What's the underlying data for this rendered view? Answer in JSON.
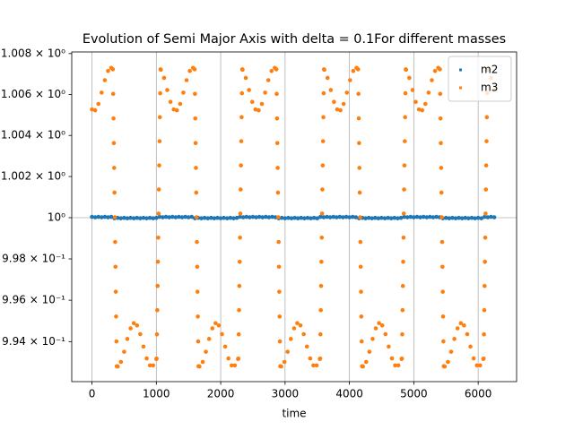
{
  "chart_data": {
    "type": "scatter",
    "title": "Evolution of Semi Major Axis with delta = 0.1For different masses",
    "x_label": "time",
    "xlim": [
      -314,
      6597
    ],
    "xticks": [
      0,
      1000,
      2000,
      3000,
      4000,
      5000,
      6000
    ],
    "xgrid": true,
    "yscale": "log",
    "ylim": [
      0.99207,
      1.00808
    ],
    "yticks": [
      {
        "value": 1.008,
        "label": "1.008 × 10⁰"
      },
      {
        "value": 1.006,
        "label": "1.006 × 10⁰"
      },
      {
        "value": 1.004,
        "label": "1.004 × 10⁰"
      },
      {
        "value": 1.002,
        "label": "1.002 × 10⁰"
      },
      {
        "value": 1,
        "label": "10⁰",
        "grid": true
      },
      {
        "value": 0.998,
        "label": "9.98 × 10⁻¹"
      },
      {
        "value": 0.996,
        "label": "9.96 × 10⁻¹"
      },
      {
        "value": 0.994,
        "label": "9.94 × 10⁻¹"
      }
    ],
    "legend": "upper right",
    "series": [
      {
        "name": "m2",
        "color": "#1f77b4",
        "x": [
          0,
          50,
          100,
          150,
          200,
          250,
          300,
          350,
          400,
          450,
          500,
          550,
          600,
          650,
          700,
          750,
          800,
          850,
          900,
          950,
          1000,
          1050,
          1100,
          1150,
          1200,
          1250,
          1300,
          1350,
          1400,
          1450,
          1500,
          1550,
          1600,
          1650,
          1700,
          1750,
          1800,
          1850,
          1900,
          1950,
          2000,
          2050,
          2100,
          2150,
          2200,
          2250,
          2300,
          2350,
          2400,
          2450,
          2500,
          2550,
          2600,
          2650,
          2700,
          2750,
          2800,
          2850,
          2900,
          2950,
          3000,
          3050,
          3100,
          3150,
          3200,
          3250,
          3300,
          3350,
          3400,
          3450,
          3500,
          3550,
          3600,
          3650,
          3700,
          3750,
          3800,
          3850,
          3900,
          3950,
          4000,
          4050,
          4100,
          4150,
          4200,
          4250,
          4300,
          4350,
          4400,
          4450,
          4500,
          4550,
          4600,
          4650,
          4700,
          4750,
          4800,
          4850,
          4900,
          4950,
          5000,
          5050,
          5100,
          5150,
          5200,
          5250,
          5300,
          5350,
          5400,
          5450,
          5500,
          5550,
          5600,
          5650,
          5700,
          5750,
          5800,
          5850,
          5900,
          5950,
          6000,
          6050,
          6100,
          6150,
          6200,
          6250
        ],
        "values": [
          1.00004,
          1.00002,
          1.00004,
          1.00002,
          1.00004,
          1.00002,
          1.00004,
          0.99997,
          0.99999,
          0.99997,
          0.99999,
          0.99997,
          0.99999,
          0.99997,
          0.99999,
          0.99997,
          0.99999,
          0.99997,
          0.99999,
          0.99997,
          0.99999,
          1.00004,
          1.00002,
          1.00004,
          1.00002,
          1.00004,
          1.00002,
          1.00004,
          1.00002,
          1.00004,
          1.00002,
          1.00004,
          0.99997,
          0.99999,
          0.99997,
          0.99999,
          0.99997,
          0.99999,
          0.99997,
          0.99999,
          0.99997,
          0.99999,
          0.99997,
          0.99999,
          0.99997,
          0.99999,
          1.00004,
          1.00002,
          1.00004,
          1.00002,
          1.00004,
          1.00002,
          1.00004,
          1.00002,
          1.00004,
          1.00002,
          1.00004,
          1.00002,
          0.99997,
          0.99999,
          0.99997,
          0.99999,
          0.99997,
          0.99999,
          0.99997,
          0.99999,
          0.99997,
          0.99999,
          0.99997,
          0.99999,
          0.99997,
          1.00004,
          1.00002,
          1.00004,
          1.00002,
          1.00004,
          1.00002,
          1.00004,
          1.00002,
          1.00004,
          1.00002,
          1.00004,
          1.00002,
          0.99997,
          0.99999,
          0.99997,
          0.99999,
          0.99997,
          0.99999,
          0.99997,
          0.99999,
          0.99997,
          0.99999,
          0.99997,
          0.99999,
          0.99997,
          0.99999,
          1.00004,
          1.00002,
          1.00004,
          1.00002,
          1.00004,
          1.00002,
          1.00004,
          1.00002,
          1.00004,
          1.00002,
          1.00004,
          1.00002,
          0.99997,
          0.99999,
          0.99997,
          0.99999,
          0.99997,
          0.99999,
          0.99997,
          0.99999,
          0.99997,
          0.99999,
          0.99997,
          0.99999,
          0.99997,
          1.00004,
          1.00002,
          1.00004,
          1.00002
        ]
      },
      {
        "name": "m3",
        "color": "#ff7f0e",
        "x": [
          0,
          50,
          100,
          150,
          200,
          250,
          300,
          325,
          330,
          335,
          340,
          345,
          350,
          355,
          360,
          365,
          370,
          375,
          380,
          385,
          400,
          450,
          500,
          550,
          600,
          650,
          700,
          750,
          800,
          850,
          900,
          950,
          1000,
          1005,
          1010,
          1015,
          1020,
          1025,
          1030,
          1035,
          1040,
          1045,
          1050,
          1055,
          1060,
          1065,
          1070,
          1120,
          1170,
          1220,
          1270,
          1320,
          1370,
          1420,
          1470,
          1520,
          1570,
          1595,
          1600,
          1605,
          1610,
          1615,
          1620,
          1625,
          1630,
          1635,
          1640,
          1645,
          1650,
          1655,
          1670,
          1720,
          1770,
          1820,
          1870,
          1920,
          1970,
          2020,
          2070,
          2120,
          2170,
          2220,
          2270,
          2275,
          2280,
          2285,
          2290,
          2295,
          2300,
          2305,
          2310,
          2315,
          2320,
          2325,
          2330,
          2335,
          2340,
          2390,
          2440,
          2490,
          2540,
          2590,
          2640,
          2690,
          2740,
          2790,
          2840,
          2865,
          2870,
          2875,
          2880,
          2885,
          2890,
          2895,
          2900,
          2905,
          2910,
          2915,
          2920,
          2925,
          2940,
          2990,
          3040,
          3090,
          3140,
          3190,
          3240,
          3290,
          3340,
          3390,
          3440,
          3490,
          3540,
          3545,
          3550,
          3555,
          3560,
          3565,
          3570,
          3575,
          3580,
          3585,
          3590,
          3595,
          3600,
          3605,
          3610,
          3660,
          3710,
          3760,
          3810,
          3860,
          3910,
          3960,
          4010,
          4060,
          4110,
          4135,
          4140,
          4145,
          4150,
          4155,
          4160,
          4165,
          4170,
          4175,
          4180,
          4185,
          4190,
          4195,
          4210,
          4260,
          4310,
          4360,
          4410,
          4460,
          4510,
          4560,
          4610,
          4660,
          4710,
          4760,
          4810,
          4815,
          4820,
          4825,
          4830,
          4835,
          4840,
          4845,
          4850,
          4855,
          4860,
          4865,
          4870,
          4875,
          4880,
          4930,
          4980,
          5030,
          5080,
          5130,
          5180,
          5230,
          5280,
          5330,
          5380,
          5405,
          5410,
          5415,
          5420,
          5425,
          5430,
          5435,
          5440,
          5445,
          5450,
          5455,
          5460,
          5465,
          5480,
          5530,
          5580,
          5630,
          5680,
          5730,
          5780,
          5830,
          5880,
          5930,
          5980,
          6030,
          6080,
          6085,
          6090,
          6095,
          6100,
          6105,
          6110,
          6115,
          6120,
          6125,
          6130,
          6135,
          6140,
          6145,
          6150,
          6200,
          6250
        ],
        "values": [
          1.00527,
          1.00523,
          1.00554,
          1.00609,
          1.0067,
          1.00715,
          1.0073,
          1.00723,
          1.00603,
          1.00483,
          1.00363,
          1.00242,
          1.00122,
          1.00002,
          0.99882,
          0.99762,
          0.99641,
          0.99521,
          0.99401,
          0.99281,
          0.9928,
          0.99302,
          0.99351,
          0.99413,
          0.99464,
          0.99489,
          0.99478,
          0.99436,
          0.99376,
          0.99319,
          0.99285,
          0.99285,
          0.99316,
          0.99318,
          0.99435,
          0.99552,
          0.99669,
          0.99786,
          0.99903,
          1.0002,
          1.00137,
          1.00254,
          1.00372,
          1.00489,
          1.00606,
          1.00723,
          1.00721,
          1.00681,
          1.00622,
          1.00564,
          1.00527,
          1.00523,
          1.00554,
          1.00609,
          1.0067,
          1.00715,
          1.0073,
          1.00723,
          1.00603,
          1.00483,
          1.00363,
          1.00242,
          1.00122,
          1.00002,
          0.99882,
          0.99762,
          0.99641,
          0.99521,
          0.99401,
          0.99281,
          0.9928,
          0.99302,
          0.99351,
          0.99413,
          0.99464,
          0.99489,
          0.99478,
          0.99436,
          0.99376,
          0.99319,
          0.99285,
          0.99285,
          0.99316,
          0.99318,
          0.99435,
          0.99552,
          0.99669,
          0.99786,
          0.99903,
          1.0002,
          1.00137,
          1.00254,
          1.00372,
          1.00489,
          1.00606,
          1.00723,
          1.00721,
          1.00681,
          1.00622,
          1.00564,
          1.00527,
          1.00523,
          1.00554,
          1.00609,
          1.0067,
          1.00715,
          1.0073,
          1.00723,
          1.00603,
          1.00483,
          1.00363,
          1.00242,
          1.00122,
          1.00002,
          0.99882,
          0.99762,
          0.99641,
          0.99521,
          0.99401,
          0.99281,
          0.9928,
          0.99302,
          0.99351,
          0.99413,
          0.99464,
          0.99489,
          0.99478,
          0.99436,
          0.99376,
          0.99319,
          0.99285,
          0.99285,
          0.99316,
          0.99318,
          0.99435,
          0.99552,
          0.99669,
          0.99786,
          0.99903,
          1.0002,
          1.00137,
          1.00254,
          1.00372,
          1.00489,
          1.00606,
          1.00723,
          1.00721,
          1.00681,
          1.00622,
          1.00564,
          1.00527,
          1.00523,
          1.00554,
          1.00609,
          1.0067,
          1.00715,
          1.0073,
          1.00723,
          1.00603,
          1.00483,
          1.00363,
          1.00242,
          1.00122,
          1.00002,
          0.99882,
          0.99762,
          0.99641,
          0.99521,
          0.99401,
          0.99281,
          0.9928,
          0.99302,
          0.99351,
          0.99413,
          0.99464,
          0.99489,
          0.99478,
          0.99436,
          0.99376,
          0.99319,
          0.99285,
          0.99285,
          0.99316,
          0.99318,
          0.99435,
          0.99552,
          0.99669,
          0.99786,
          0.99903,
          1.0002,
          1.00137,
          1.00254,
          1.00372,
          1.00489,
          1.00606,
          1.00723,
          1.00721,
          1.00681,
          1.00622,
          1.00564,
          1.00527,
          1.00523,
          1.00554,
          1.00609,
          1.0067,
          1.00715,
          1.0073,
          1.00723,
          1.00603,
          1.00483,
          1.00363,
          1.00242,
          1.00122,
          1.00002,
          0.99882,
          0.99762,
          0.99641,
          0.99521,
          0.99401,
          0.99281,
          0.9928,
          0.99302,
          0.99351,
          0.99413,
          0.99464,
          0.99489,
          0.99478,
          0.99436,
          0.99376,
          0.99319,
          0.99285,
          0.99285,
          0.99316,
          0.99318,
          0.99435,
          0.99552,
          0.99669,
          0.99786,
          0.99903,
          1.0002,
          1.00137,
          1.00254,
          1.00372,
          1.00489,
          1.00606,
          1.00723,
          1.00721,
          1.00681,
          1.00622
        ]
      }
    ]
  }
}
